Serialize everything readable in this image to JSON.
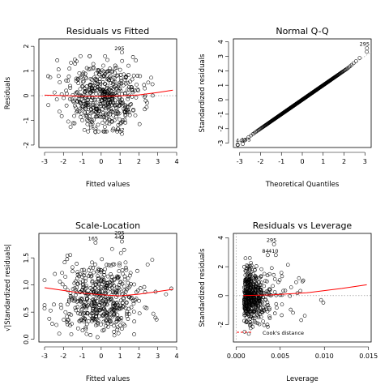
{
  "chart_data": [
    {
      "type": "scatter",
      "panel": "residuals-vs-fitted",
      "title": "Residuals vs Fitted",
      "xlabel": "Fitted values",
      "ylabel": "Residuals",
      "xlim": [
        -3.3,
        4.0
      ],
      "ylim": [
        -2.1,
        2.3
      ],
      "xticks": [
        -3,
        -2,
        -1,
        0,
        1,
        2,
        3,
        4
      ],
      "yticks": [
        -2,
        -1,
        0,
        1,
        2
      ],
      "reference_line": 0,
      "smooth": {
        "x": [
          -3.0,
          -2.0,
          -1.0,
          0.0,
          1.0,
          2.0,
          3.0,
          3.8
        ],
        "y": [
          0.02,
          0.0,
          -0.02,
          -0.03,
          -0.01,
          0.03,
          0.13,
          0.22
        ]
      },
      "labeled_points": [
        {
          "label": "295",
          "x": 1.1,
          "y": 1.75
        },
        {
          "label": "165",
          "x": -0.3,
          "y": -1.48
        },
        {
          "label": "442",
          "x": 1.1,
          "y": -1.55
        }
      ],
      "n_points": 500
    },
    {
      "type": "scatter",
      "panel": "normal-qq",
      "title": "Normal Q-Q",
      "xlabel": "Theoretical Quantiles",
      "ylabel": "Standardized residuals",
      "xlim": [
        -3.3,
        3.3
      ],
      "ylim": [
        -3.3,
        4.2
      ],
      "xticks": [
        -3,
        -2,
        -1,
        0,
        1,
        2,
        3
      ],
      "yticks": [
        -3,
        -2,
        -1,
        0,
        1,
        2,
        3,
        4
      ],
      "reference_line": {
        "from": [
          -3.3,
          -3.3
        ],
        "to": [
          3.3,
          3.3
        ]
      },
      "labeled_points": [
        {
          "label": "295",
          "x": 3.1,
          "y": 3.55
        },
        {
          "label": "442",
          "x": -3.1,
          "y": -3.1
        },
        {
          "label": "165",
          "x": -2.85,
          "y": -3.05
        }
      ],
      "n_points": 500
    },
    {
      "type": "scatter",
      "panel": "scale-location",
      "title": "Scale-Location",
      "xlabel": "Fitted values",
      "ylabel": "√|Standardized residuals|",
      "xlim": [
        -3.3,
        4.0
      ],
      "ylim": [
        -0.05,
        1.95
      ],
      "xticks": [
        -3,
        -2,
        -1,
        0,
        1,
        2,
        3,
        4
      ],
      "yticks": [
        0.0,
        0.5,
        1.0,
        1.5
      ],
      "smooth": {
        "x": [
          -3.0,
          -2.0,
          -1.0,
          0.0,
          1.0,
          2.0,
          3.0,
          3.8
        ],
        "y": [
          0.95,
          0.9,
          0.85,
          0.82,
          0.8,
          0.83,
          0.88,
          0.92
        ]
      },
      "labeled_points": [
        {
          "label": "295",
          "x": 1.1,
          "y": 1.88
        },
        {
          "label": "165",
          "x": -0.3,
          "y": 1.78
        },
        {
          "label": "442",
          "x": 1.1,
          "y": 1.8
        }
      ],
      "n_points": 500
    },
    {
      "type": "scatter",
      "panel": "residuals-vs-leverage",
      "title": "Residuals vs Leverage",
      "xlabel": "Leverage",
      "ylabel": "Standardized residuals",
      "xlim": [
        -0.0003,
        0.0153
      ],
      "ylim": [
        -3.2,
        4.3
      ],
      "xticks": [
        0.0,
        0.005,
        0.01,
        0.015
      ],
      "xticklabels": [
        "0.000",
        "0.005",
        "0.010",
        "0.015"
      ],
      "yticks": [
        -2,
        0,
        2,
        4
      ],
      "smooth": {
        "x": [
          0.0008,
          0.004,
          0.008,
          0.012,
          0.0148
        ],
        "y": [
          0.0,
          0.05,
          0.2,
          0.5,
          0.75
        ]
      },
      "cooks_distance_label": "Cook's distance",
      "labeled_points": [
        {
          "label": "295",
          "x": 0.0043,
          "y": 3.55
        },
        {
          "label": "84",
          "x": 0.0036,
          "y": 2.8
        },
        {
          "label": "410",
          "x": 0.0045,
          "y": 2.8
        }
      ],
      "n_points": 500
    }
  ]
}
